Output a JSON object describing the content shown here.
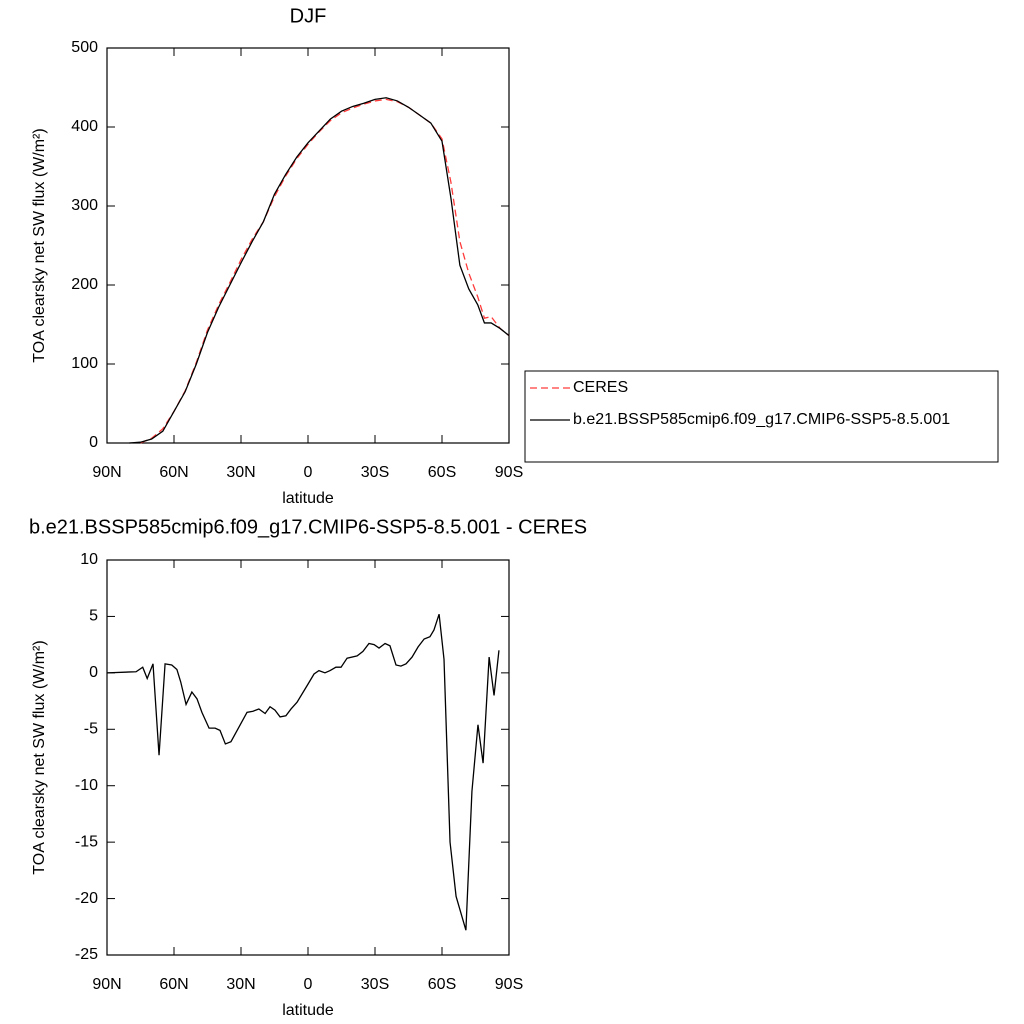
{
  "chart_data": [
    {
      "type": "line",
      "title": "DJF",
      "xlabel": "latitude",
      "ylabel": "TOA clearsky net SW flux (W/m²)",
      "xlim": [
        90,
        -90
      ],
      "xticks": [
        {
          "value": 90,
          "label": "90N"
        },
        {
          "value": 60,
          "label": "60N"
        },
        {
          "value": 30,
          "label": "30N"
        },
        0,
        {
          "value": -30,
          "label": "30S"
        },
        {
          "value": -60,
          "label": "60S"
        },
        {
          "value": -90,
          "label": "90S"
        }
      ],
      "ylim": [
        0,
        500
      ],
      "yticks": [
        0,
        100,
        200,
        300,
        400,
        500
      ],
      "legend": "right",
      "series": [
        {
          "name": "CERES",
          "color": "#ff3b3b",
          "dash": true,
          "x": [
            75,
            70,
            65,
            60,
            55,
            50,
            45,
            40,
            35,
            30,
            25,
            20,
            15,
            10,
            5,
            0,
            -5,
            -10,
            -15,
            -20,
            -25,
            -30,
            -35,
            -40,
            -45,
            -50,
            -55,
            -60,
            -64,
            -68,
            -72,
            -76,
            -79,
            -82,
            -86,
            -90
          ],
          "values": [
            0,
            6,
            18,
            40,
            66,
            102,
            143,
            175,
            203,
            232,
            258,
            280,
            312,
            338,
            360,
            378,
            394,
            408,
            418,
            424,
            429,
            433,
            435,
            432,
            425,
            415,
            405,
            385,
            330,
            255,
            215,
            185,
            158,
            160,
            145,
            136
          ]
        },
        {
          "name": "b.e21.BSSP585cmip6.f09_g17.CMIP6-SSP5-8.5.001",
          "color": "#000000",
          "dash": false,
          "x": [
            80,
            75,
            70,
            65,
            60,
            55,
            50,
            45,
            40,
            35,
            30,
            25,
            20,
            15,
            10,
            5,
            0,
            -5,
            -10,
            -15,
            -20,
            -25,
            -30,
            -35,
            -40,
            -45,
            -50,
            -55,
            -60,
            -64,
            -68,
            -72,
            -76,
            -79,
            -82,
            -86,
            -90
          ],
          "values": [
            0,
            1,
            5,
            15,
            40,
            65,
            100,
            140,
            172,
            200,
            228,
            255,
            280,
            315,
            340,
            362,
            380,
            395,
            410,
            420,
            426,
            430,
            435,
            437,
            433,
            425,
            415,
            405,
            382,
            310,
            225,
            195,
            175,
            152,
            152,
            145,
            136
          ]
        }
      ]
    },
    {
      "type": "line",
      "title": "b.e21.BSSP585cmip6.f09_g17.CMIP6-SSP5-8.5.001 - CERES",
      "xlabel": "latitude",
      "ylabel": "TOA clearsky net SW flux (W/m²)",
      "xlim": [
        90,
        -90
      ],
      "xticks": [
        {
          "value": 90,
          "label": "90N"
        },
        {
          "value": 60,
          "label": "60N"
        },
        {
          "value": 30,
          "label": "30N"
        },
        0,
        {
          "value": -30,
          "label": "30S"
        },
        {
          "value": -60,
          "label": "60S"
        },
        {
          "value": -90,
          "label": "90S"
        }
      ],
      "ylim": [
        -25,
        10
      ],
      "yticks": [
        -25,
        -20,
        -15,
        -10,
        -5,
        0,
        5,
        10
      ],
      "series": [
        {
          "color": "#000000",
          "dash": false,
          "x": [
            90,
            77,
            74,
            72,
            69.4,
            66.7,
            64,
            61,
            58.7,
            57,
            54.6,
            52,
            49.7,
            47.5,
            44.3,
            41.6,
            39.4,
            37,
            34.5,
            27.3,
            24.6,
            22,
            19.2,
            17,
            14.8,
            12.5,
            9.9,
            7.6,
            4.9,
            0,
            -2.7,
            -4.9,
            -7.6,
            -9.9,
            -12.5,
            -14.8,
            -17.5,
            -22,
            -24.6,
            -27.3,
            -29.6,
            -31.8,
            -34.5,
            -36.7,
            -39.4,
            -41.6,
            -43.9,
            -46.6,
            -49.3,
            -52,
            -54.6,
            -56.4,
            -58.7,
            -60.9,
            -63.6,
            -66.3,
            -70.7,
            -73.4,
            -76.1,
            -78.4,
            -81.1,
            -83.3,
            -85.5
          ],
          "values": [
            0,
            0.1,
            0.5,
            -0.5,
            0.8,
            -7.3,
            0.8,
            0.7,
            0.3,
            -0.8,
            -2.8,
            -1.7,
            -2.3,
            -3.5,
            -4.9,
            -4.9,
            -5.1,
            -6.3,
            -6.1,
            -3.5,
            -3.4,
            -3.2,
            -3.6,
            -3,
            -3.3,
            -3.9,
            -3.8,
            -3.2,
            -2.6,
            -1,
            -0.1,
            0.2,
            0,
            0.2,
            0.5,
            0.5,
            1.3,
            1.5,
            1.9,
            2.6,
            2.5,
            2.2,
            2.6,
            2.4,
            0.7,
            0.6,
            0.8,
            1.4,
            2.3,
            3,
            3.2,
            3.8,
            5.2,
            1.2,
            -15,
            -19.8,
            -22.8,
            -10.5,
            -4.6,
            -8,
            1.4,
            -2,
            2
          ]
        }
      ]
    }
  ]
}
